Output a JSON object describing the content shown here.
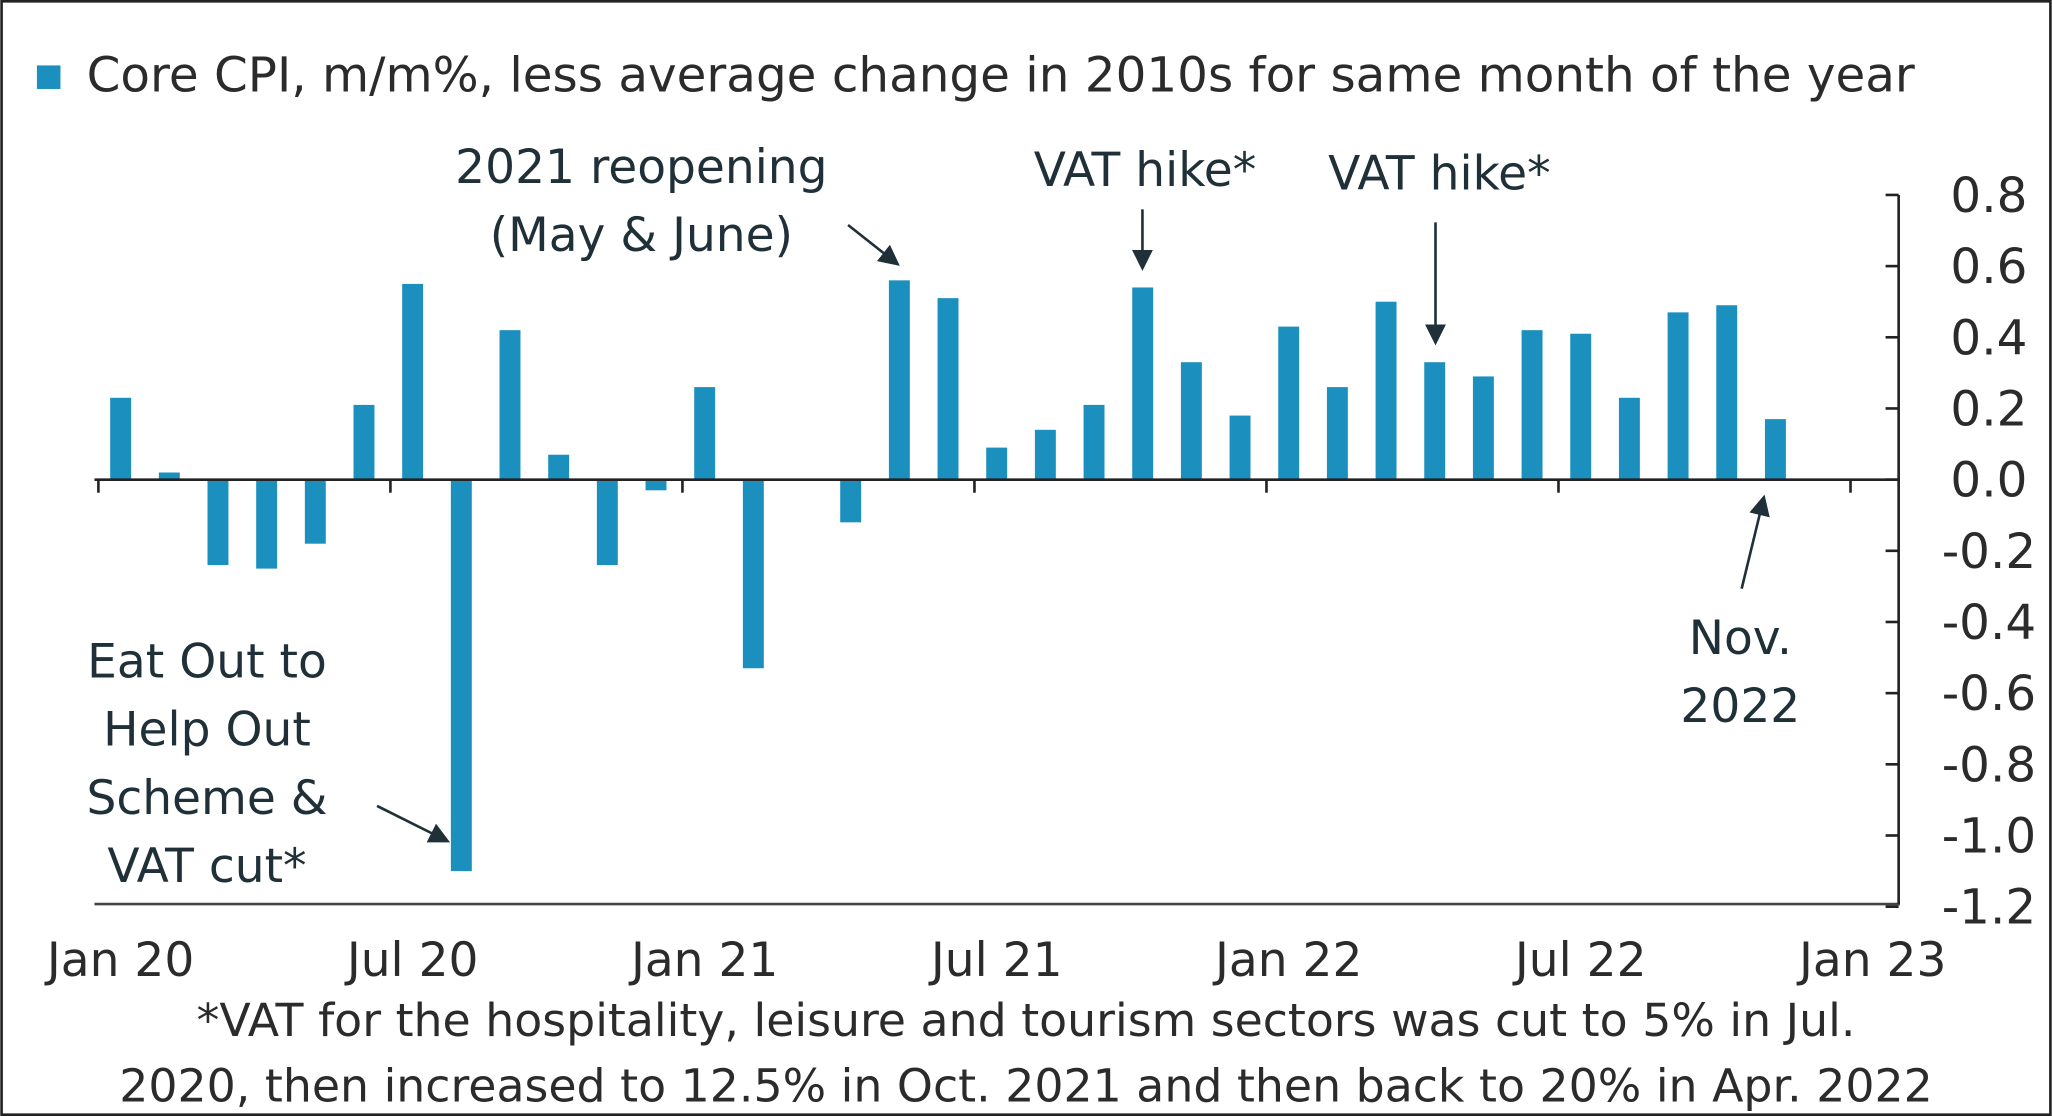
{
  "chart_data": {
    "type": "bar",
    "title": "",
    "legend": [
      {
        "name": "Core CPI, m/m%, less average change in 2010s for same month of the year",
        "color": "#1b8fbd"
      }
    ],
    "legend_position": "top-left",
    "categories": [
      "Jan 20",
      "Feb 20",
      "Mar 20",
      "Apr 20",
      "May 20",
      "Jun 20",
      "Jul 20",
      "Aug 20",
      "Sep 20",
      "Oct 20",
      "Nov 20",
      "Dec 20",
      "Jan 21",
      "Feb 21",
      "Mar 21",
      "Apr 21",
      "May 21",
      "Jun 21",
      "Jul 21",
      "Aug 21",
      "Sep 21",
      "Oct 21",
      "Nov 21",
      "Dec 21",
      "Jan 22",
      "Feb 22",
      "Mar 22",
      "Apr 22",
      "May 22",
      "Jun 22",
      "Jul 22",
      "Aug 22",
      "Sep 22",
      "Oct 22",
      "Nov 22"
    ],
    "values": [
      0.23,
      0.02,
      -0.24,
      -0.25,
      -0.18,
      0.21,
      0.55,
      -1.1,
      0.42,
      0.07,
      -0.24,
      -0.03,
      0.26,
      -0.53,
      0.0,
      -0.12,
      0.56,
      0.51,
      0.09,
      0.14,
      0.21,
      0.54,
      0.33,
      0.18,
      0.43,
      0.26,
      0.5,
      0.33,
      0.29,
      0.42,
      0.41,
      0.23,
      0.47,
      0.49,
      0.17
    ],
    "x_tick_labels": [
      "Jan 20",
      "Jul 20",
      "Jan 21",
      "Jul 21",
      "Jan 22",
      "Jul 22",
      "Jan 23"
    ],
    "y_tick_labels": [
      "0.8",
      "0.6",
      "0.4",
      "0.2",
      "0.0",
      "-0.2",
      "-0.4",
      "-0.6",
      "-0.8",
      "-1.0",
      "-1.2"
    ],
    "ylim": [
      -1.2,
      0.8
    ],
    "y_axis_side": "right",
    "grid": false,
    "bar_color": "#1b8fbd",
    "annotations": {
      "reopening": [
        "2021 reopening",
        "(May & June)"
      ],
      "vat_hike_1": "VAT hike*",
      "vat_hike_2": "VAT hike*",
      "eat_out": [
        "Eat Out to",
        "Help Out",
        "Scheme &",
        "VAT cut*"
      ],
      "nov": [
        "Nov.",
        "2022"
      ]
    },
    "footnote": [
      "*VAT for the hospitality, leisure and tourism sectors was cut to 5% in Jul.",
      "2020, then increased to 12.5% in Oct. 2021 and then back to 20% in Apr. 2022"
    ]
  }
}
